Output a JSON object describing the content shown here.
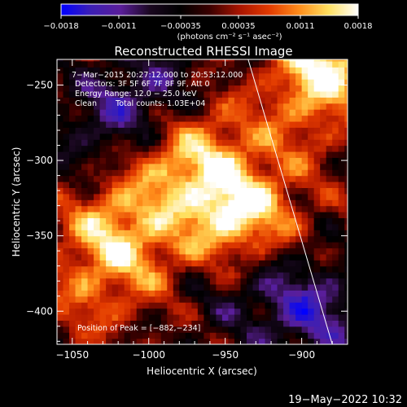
{
  "chart_data": {
    "type": "heatmap",
    "title": "Reconstructed RHESSI Image",
    "xlabel": "Heliocentric X (arcsec)",
    "ylabel": "Heliocentric Y (arcsec)",
    "xlim": [
      -1060,
      -870
    ],
    "ylim": [
      -422,
      -233
    ],
    "x_ticks": [
      -1050,
      -1000,
      -950,
      -900
    ],
    "x_tick_labels": [
      "−1050",
      "−1000",
      "−950",
      "−900"
    ],
    "y_ticks": [
      -250,
      -300,
      -350,
      -400
    ],
    "y_tick_labels": [
      "−250",
      "−300",
      "−350",
      "−400"
    ],
    "colorbar": {
      "min": -0.0018,
      "max": 0.0018,
      "ticks": [
        -0.0018,
        -0.0011,
        -0.00035,
        0.00035,
        0.0011,
        0.0018
      ],
      "tick_labels": [
        "−0.0018",
        "−0.0011",
        "−0.00035",
        "0.00035",
        "0.0011",
        "0.0018"
      ],
      "unit_label": "(photons cm⁻² s⁻¹ asec⁻²)",
      "colormap": [
        "#0000ff",
        "#3c1fb4",
        "#5a1e9a",
        "#1a0820",
        "#000000",
        "#3a0000",
        "#a81400",
        "#e23a00",
        "#ff8c1a",
        "#ffe060",
        "#ffffff"
      ]
    },
    "annotations": {
      "time": "7−Mar−2015 20:27:12.000 to 20:53:12.000",
      "detectors": "Detectors: 3F 5F 6F 7F 8F 9F, Att 0",
      "energy": "Energy Range: 12.0 − 25.0 keV",
      "method": "Clean",
      "counts": "Total counts: 1.03E+04",
      "peak": "Position of Peak = [−882,−234]"
    },
    "peak_position": [
      -882,
      -234
    ],
    "limb_line": {
      "x1": -935,
      "y1": -233,
      "x2": -880,
      "y2": -422
    },
    "features": [
      {
        "x": -950,
        "y": -335,
        "value": 0.0016
      },
      {
        "x": -885,
        "y": -236,
        "value": 0.0018
      },
      {
        "x": -1030,
        "y": -345,
        "value": 0.0011
      },
      {
        "x": -990,
        "y": -310,
        "value": 0.0009
      },
      {
        "x": -960,
        "y": -290,
        "value": 0.0008
      },
      {
        "x": -1040,
        "y": -390,
        "value": 0.0007
      },
      {
        "x": -905,
        "y": -275,
        "value": 0.0006
      },
      {
        "x": -1000,
        "y": -365,
        "value": 0.0007
      },
      {
        "x": -920,
        "y": -330,
        "value": 0.0005
      },
      {
        "x": -1020,
        "y": -265,
        "value": -0.0007
      },
      {
        "x": -890,
        "y": -405,
        "value": -0.0009
      },
      {
        "x": -915,
        "y": -395,
        "value": -0.0006
      },
      {
        "x": -1045,
        "y": -295,
        "value": -0.0004
      },
      {
        "x": -960,
        "y": -395,
        "value": -0.0003
      },
      {
        "x": -995,
        "y": -255,
        "value": -0.0005
      }
    ],
    "grid": false,
    "legend": "none"
  },
  "footer": {
    "timestamp": "19−May−2022 10:32"
  }
}
